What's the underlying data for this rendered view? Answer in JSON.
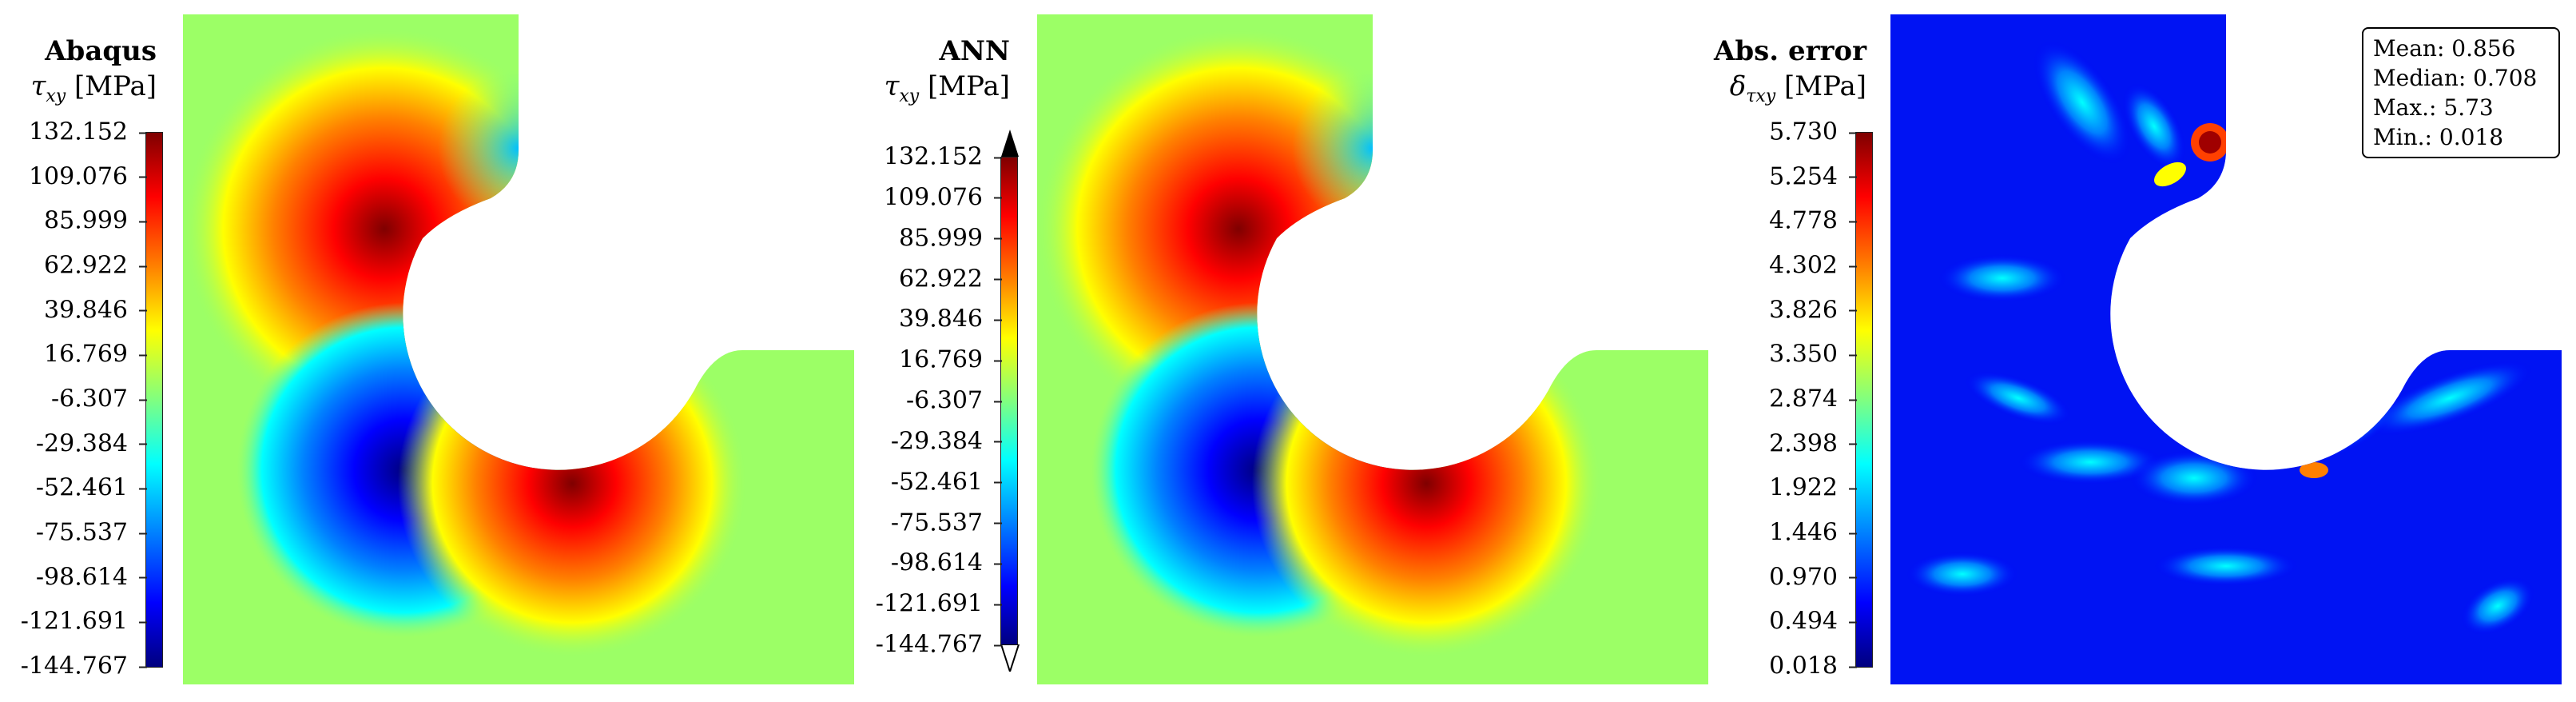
{
  "panels": [
    {
      "title": "Abaqus",
      "quantity": "τ",
      "quantity_sub": "xy",
      "unit": "[MPa]",
      "ticks": [
        "132.152",
        "109.076",
        "85.999",
        "62.922",
        "39.846",
        "16.769",
        "-6.307",
        "-29.384",
        "-52.461",
        "-75.537",
        "-98.614",
        "-121.691",
        "-144.767"
      ],
      "colormap": "jet",
      "extend_arrows": false
    },
    {
      "title": "ANN",
      "quantity": "τ",
      "quantity_sub": "xy",
      "unit": "[MPa]",
      "ticks": [
        "132.152",
        "109.076",
        "85.999",
        "62.922",
        "39.846",
        "16.769",
        "-6.307",
        "-29.384",
        "-52.461",
        "-75.537",
        "-98.614",
        "-121.691",
        "-144.767"
      ],
      "colormap": "jet",
      "extend_arrows": true
    },
    {
      "title": "Abs. error",
      "quantity": "δ",
      "quantity_sub": "τxy",
      "unit": "[MPa]",
      "ticks": [
        "5.730",
        "5.254",
        "4.778",
        "4.302",
        "3.826",
        "3.350",
        "2.874",
        "2.398",
        "1.922",
        "1.446",
        "0.970",
        "0.494",
        "0.018"
      ],
      "colormap": "jet",
      "extend_arrows": false,
      "stats": [
        "Mean: 0.856",
        "Median: 0.708",
        "Max.: 5.73",
        "Min.: 0.018"
      ]
    }
  ]
}
